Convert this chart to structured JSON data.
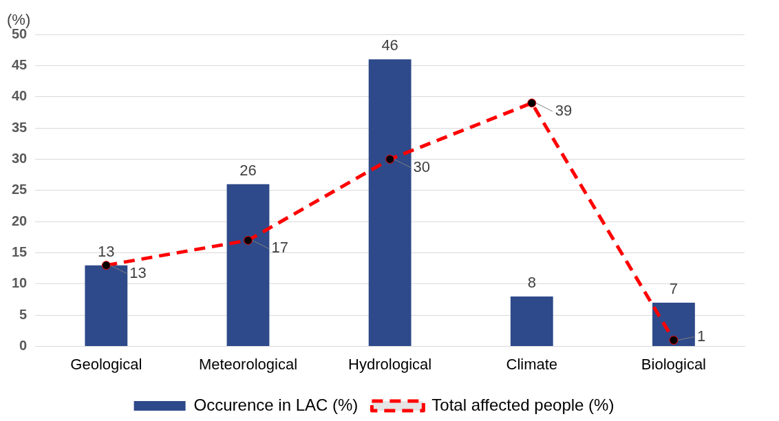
{
  "chart_data": {
    "type": "bar",
    "ylabel": "(%)",
    "categories": [
      "Geological",
      "Meteorological",
      "Hydrological",
      "Climate",
      "Biological"
    ],
    "series": [
      {
        "name": "Occurence in LAC (%)",
        "color": "#2e4a8a",
        "values": [
          13,
          26,
          46,
          8,
          7
        ]
      },
      {
        "name": "Total affected people (%)",
        "type": "line",
        "color": "#ff0000",
        "values": [
          13,
          17,
          30,
          39,
          1
        ]
      }
    ],
    "ylim": [
      0,
      50
    ],
    "yticks": [
      0,
      5,
      10,
      15,
      20,
      25,
      30,
      35,
      40,
      45,
      50
    ],
    "grid": "y",
    "legend": "bottom",
    "data_labels": true,
    "marker": "circle",
    "line_style": "dashed"
  }
}
